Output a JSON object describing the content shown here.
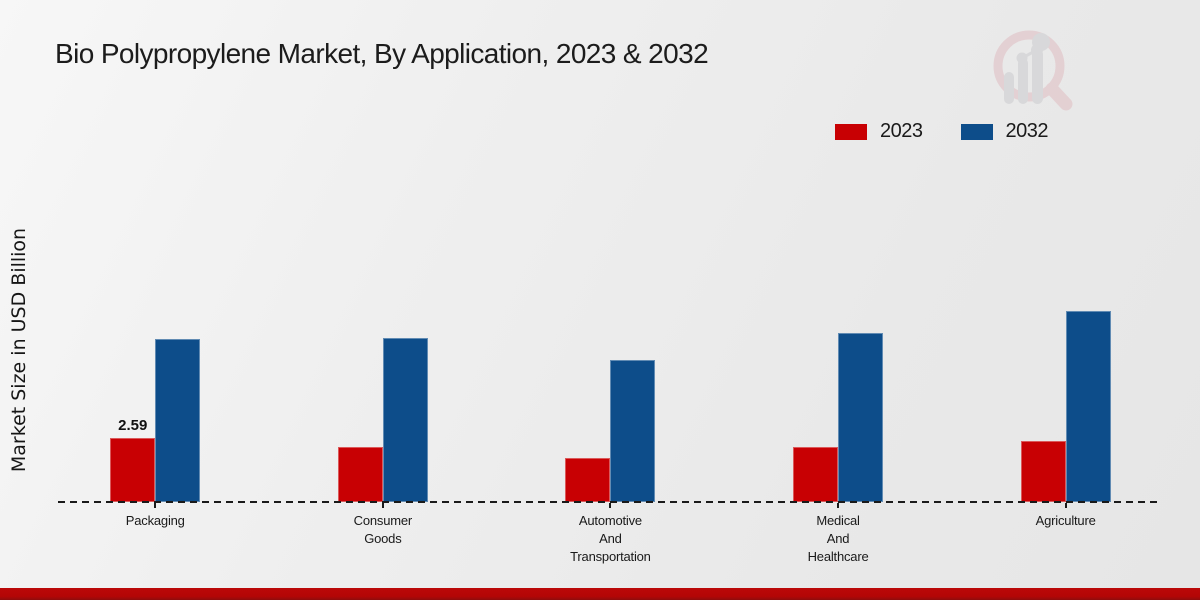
{
  "title": "Bio Polypropylene Market, By Application, 2023 & 2032",
  "ylabel": "Market Size in USD Billion",
  "legend": [
    {
      "label": "2023",
      "color": "#c80003"
    },
    {
      "label": "2032",
      "color": "#0d4d8a"
    }
  ],
  "colors": {
    "bar_2023": "#c80003",
    "bar_2032": "#0d4d8a",
    "footer_accent": "#b30606",
    "baseline": "#1a1a1a",
    "watermark_pink": "#dfb9be",
    "watermark_gray": "#c9c9cc"
  },
  "watermark_icon": "market-research-future-magnifier-bars-logo",
  "chart_data": {
    "type": "bar",
    "title": "Bio Polypropylene Market, By Application, 2023 & 2032",
    "xlabel": "",
    "ylabel": "Market Size in USD Billion",
    "categories": [
      "Packaging",
      "Consumer Goods",
      "Automotive And Transportation",
      "Medical And Healthcare",
      "Agriculture"
    ],
    "series": [
      {
        "name": "2023",
        "color": "#c80003",
        "values": [
          2.59,
          2.23,
          1.78,
          2.23,
          2.47
        ]
      },
      {
        "name": "2032",
        "color": "#0d4d8a",
        "values": [
          6.6,
          6.64,
          5.75,
          6.84,
          7.73
        ]
      }
    ],
    "data_labels": [
      {
        "series": "2023",
        "category": "Packaging",
        "text": "2.59"
      }
    ],
    "ylim": [
      0,
      8.5
    ],
    "grid": false,
    "legend_position": "top-right",
    "baseline_style": "dashed",
    "y_axis_ticks_visible": false
  }
}
